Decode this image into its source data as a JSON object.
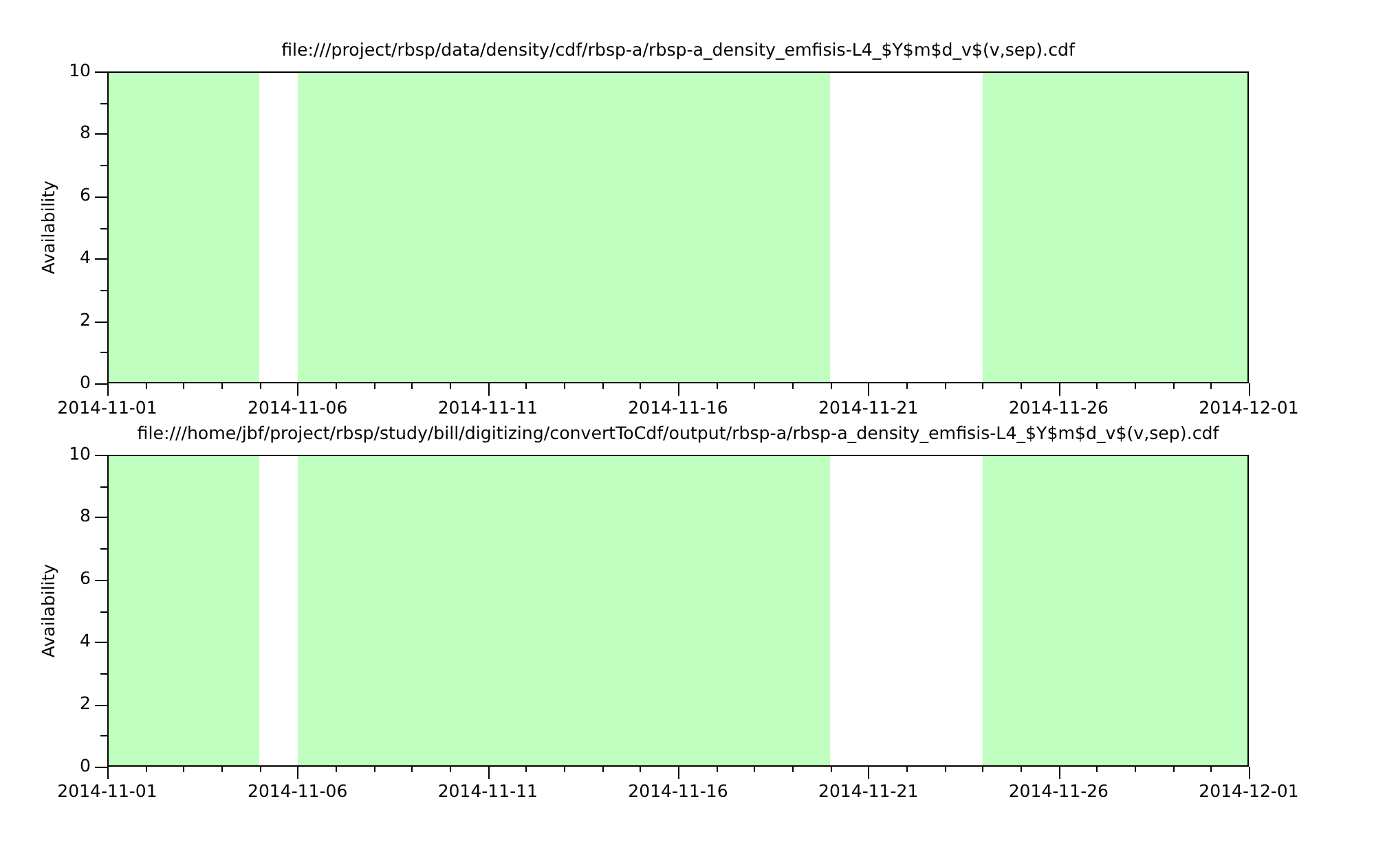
{
  "chart_data": [
    {
      "type": "area",
      "title": "file:///project/rbsp/data/density/cdf/rbsp-a/rbsp-a_density_emfisis-L4_$Y$m$d_v$(v,sep).cdf",
      "ylabel": "Availability",
      "marker": "none",
      "series": [
        {
          "color": "#c0ffc0",
          "x": [
            "2014-11-01",
            "2014-11-05"
          ],
          "values": [
            10,
            10
          ]
        },
        {
          "color": "#c0ffc0",
          "x": [
            "2014-11-06",
            "2014-11-20"
          ],
          "values": [
            10,
            10
          ]
        },
        {
          "color": "#c0ffc0",
          "x": [
            "2014-11-24",
            "2014-12-01"
          ],
          "values": [
            10,
            10
          ]
        }
      ],
      "xlim": [
        "2014-11-01",
        "2014-12-01"
      ],
      "xticks": [
        "2014-11-01",
        {
          "value": "2014-11-02",
          "label": null
        },
        {
          "value": "2014-11-03",
          "label": null
        },
        {
          "value": "2014-11-04",
          "label": null
        },
        {
          "value": "2014-11-05",
          "label": null
        },
        "2014-11-06",
        {
          "value": "2014-11-07",
          "label": null
        },
        {
          "value": "2014-11-08",
          "label": null
        },
        {
          "value": "2014-11-09",
          "label": null
        },
        {
          "value": "2014-11-10",
          "label": null
        },
        "2014-11-11",
        {
          "value": "2014-11-12",
          "label": null
        },
        {
          "value": "2014-11-13",
          "label": null
        },
        {
          "value": "2014-11-14",
          "label": null
        },
        {
          "value": "2014-11-15",
          "label": null
        },
        "2014-11-16",
        {
          "value": "2014-11-17",
          "label": null
        },
        {
          "value": "2014-11-18",
          "label": null
        },
        {
          "value": "2014-11-19",
          "label": null
        },
        {
          "value": "2014-11-20",
          "label": null
        },
        "2014-11-21",
        {
          "value": "2014-11-22",
          "label": null
        },
        {
          "value": "2014-11-23",
          "label": null
        },
        {
          "value": "2014-11-24",
          "label": null
        },
        {
          "value": "2014-11-25",
          "label": null
        },
        "2014-11-26",
        {
          "value": "2014-11-27",
          "label": null
        },
        {
          "value": "2014-11-28",
          "label": null
        },
        {
          "value": "2014-11-29",
          "label": null
        },
        {
          "value": "2014-11-30",
          "label": null
        },
        "2014-12-01"
      ],
      "ylim": [
        0,
        10
      ],
      "yticks": [
        0,
        {
          "value": 1,
          "label": null
        },
        2,
        {
          "value": 3,
          "label": null
        },
        4,
        {
          "value": 5,
          "label": null
        },
        6,
        {
          "value": 7,
          "label": null
        },
        8,
        {
          "value": 9,
          "label": null
        },
        10
      ]
    },
    {
      "type": "area",
      "title": "file:///home/jbf/project/rbsp/study/bill/digitizing/convertToCdf/output/rbsp-a/rbsp-a_density_emfisis-L4_$Y$m$d_v$(v,sep).cdf",
      "ylabel": "Availability",
      "marker": "none",
      "series": [
        {
          "color": "#c0ffc0",
          "x": [
            "2014-11-01",
            "2014-11-05"
          ],
          "values": [
            10,
            10
          ]
        },
        {
          "color": "#c0ffc0",
          "x": [
            "2014-11-06",
            "2014-11-20"
          ],
          "values": [
            10,
            10
          ]
        },
        {
          "color": "#c0ffc0",
          "x": [
            "2014-11-24",
            "2014-12-01"
          ],
          "values": [
            10,
            10
          ]
        }
      ],
      "xlim": [
        "2014-11-01",
        "2014-12-01"
      ],
      "xticks": [
        "2014-11-01",
        {
          "value": "2014-11-02",
          "label": null
        },
        {
          "value": "2014-11-03",
          "label": null
        },
        {
          "value": "2014-11-04",
          "label": null
        },
        {
          "value": "2014-11-05",
          "label": null
        },
        "2014-11-06",
        {
          "value": "2014-11-07",
          "label": null
        },
        {
          "value": "2014-11-08",
          "label": null
        },
        {
          "value": "2014-11-09",
          "label": null
        },
        {
          "value": "2014-11-10",
          "label": null
        },
        "2014-11-11",
        {
          "value": "2014-11-12",
          "label": null
        },
        {
          "value": "2014-11-13",
          "label": null
        },
        {
          "value": "2014-11-14",
          "label": null
        },
        {
          "value": "2014-11-15",
          "label": null
        },
        "2014-11-16",
        {
          "value": "2014-11-17",
          "label": null
        },
        {
          "value": "2014-11-18",
          "label": null
        },
        {
          "value": "2014-11-19",
          "label": null
        },
        {
          "value": "2014-11-20",
          "label": null
        },
        "2014-11-21",
        {
          "value": "2014-11-22",
          "label": null
        },
        {
          "value": "2014-11-23",
          "label": null
        },
        {
          "value": "2014-11-24",
          "label": null
        },
        {
          "value": "2014-11-25",
          "label": null
        },
        "2014-11-26",
        {
          "value": "2014-11-27",
          "label": null
        },
        {
          "value": "2014-11-28",
          "label": null
        },
        {
          "value": "2014-11-29",
          "label": null
        },
        {
          "value": "2014-11-30",
          "label": null
        },
        "2014-12-01"
      ],
      "ylim": [
        0,
        10
      ],
      "yticks": [
        0,
        {
          "value": 1,
          "label": null
        },
        2,
        {
          "value": 3,
          "label": null
        },
        4,
        {
          "value": 5,
          "label": null
        },
        6,
        {
          "value": 7,
          "label": null
        },
        8,
        {
          "value": 9,
          "label": null
        },
        10
      ]
    }
  ]
}
